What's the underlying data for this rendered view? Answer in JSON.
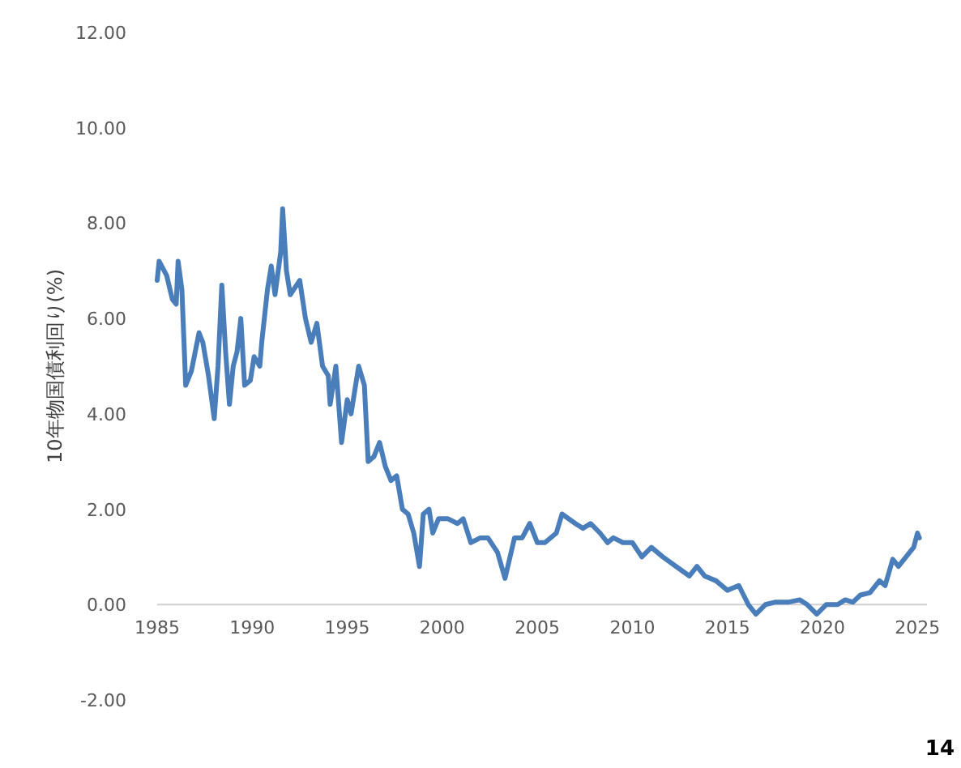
{
  "chart_data": {
    "type": "line",
    "ylabel": "10年物国債利回り(%)",
    "annotations": [
      "14"
    ],
    "xlim": [
      1985,
      2025.5
    ],
    "ylim": [
      -2,
      12
    ],
    "xticks": [
      1985,
      1990,
      1995,
      2000,
      2005,
      2010,
      2015,
      2020,
      2025
    ],
    "yticks": [
      {
        "value": -2,
        "label": "-2.00"
      },
      {
        "value": 0,
        "label": "0.00"
      },
      {
        "value": 2,
        "label": "2.00"
      },
      {
        "value": 4,
        "label": "4.00"
      },
      {
        "value": 6,
        "label": "6.00"
      },
      {
        "value": 8,
        "label": "8.00"
      },
      {
        "value": 10,
        "label": "10.00"
      },
      {
        "value": 12,
        "label": "12.00"
      }
    ],
    "series": [
      {
        "color": "#4a7ebb",
        "x": [
          1985.0,
          1985.1,
          1985.5,
          1985.8,
          1986.0,
          1986.1,
          1986.3,
          1986.5,
          1986.8,
          1987.0,
          1987.2,
          1987.4,
          1987.7,
          1988.0,
          1988.2,
          1988.4,
          1988.6,
          1988.8,
          1989.0,
          1989.2,
          1989.4,
          1989.6,
          1989.9,
          1990.1,
          1990.4,
          1990.5,
          1990.8,
          1991.0,
          1991.2,
          1991.5,
          1991.6,
          1991.8,
          1992.0,
          1992.5,
          1992.8,
          1993.1,
          1993.4,
          1993.7,
          1994.0,
          1994.1,
          1994.4,
          1994.7,
          1995.0,
          1995.2,
          1995.6,
          1995.9,
          1996.1,
          1996.4,
          1996.7,
          1997.0,
          1997.3,
          1997.6,
          1997.9,
          1998.2,
          1998.5,
          1998.8,
          1999.0,
          1999.3,
          1999.5,
          1999.8,
          2000.3,
          2000.8,
          2001.1,
          2001.5,
          2002.0,
          2002.4,
          2002.9,
          2003.3,
          2003.8,
          2004.2,
          2004.6,
          2005.0,
          2005.4,
          2006.0,
          2006.3,
          2007.0,
          2007.4,
          2007.8,
          2008.3,
          2008.7,
          2009.0,
          2009.5,
          2010.0,
          2010.5,
          2011.0,
          2011.6,
          2012.3,
          2013.0,
          2013.4,
          2013.8,
          2014.4,
          2015.0,
          2015.6,
          2016.1,
          2016.5,
          2017.0,
          2017.5,
          2018.2,
          2018.8,
          2019.2,
          2019.7,
          2020.2,
          2020.8,
          2021.2,
          2021.6,
          2022.0,
          2022.5,
          2023.0,
          2023.3,
          2023.7,
          2024.0,
          2024.5,
          2024.8,
          2025.0,
          2025.1
        ],
        "values": [
          6.8,
          7.2,
          6.9,
          6.4,
          6.3,
          7.2,
          6.6,
          4.6,
          4.9,
          5.3,
          5.7,
          5.5,
          4.8,
          3.9,
          5.0,
          6.7,
          5.3,
          4.2,
          5.0,
          5.3,
          6.0,
          4.6,
          4.7,
          5.2,
          5.0,
          5.5,
          6.6,
          7.1,
          6.5,
          7.4,
          8.3,
          7.0,
          6.5,
          6.8,
          6.0,
          5.5,
          5.9,
          5.0,
          4.8,
          4.2,
          5.0,
          3.4,
          4.3,
          4.0,
          5.0,
          4.6,
          3.0,
          3.1,
          3.4,
          2.9,
          2.6,
          2.7,
          2.0,
          1.9,
          1.5,
          0.8,
          1.9,
          2.0,
          1.5,
          1.8,
          1.8,
          1.7,
          1.8,
          1.3,
          1.4,
          1.4,
          1.1,
          0.55,
          1.4,
          1.4,
          1.7,
          1.3,
          1.3,
          1.5,
          1.9,
          1.7,
          1.6,
          1.7,
          1.5,
          1.3,
          1.4,
          1.3,
          1.3,
          1.0,
          1.2,
          1.0,
          0.8,
          0.6,
          0.8,
          0.6,
          0.5,
          0.3,
          0.4,
          0.0,
          -0.2,
          0.0,
          0.05,
          0.05,
          0.1,
          0.0,
          -0.2,
          0.0,
          0.0,
          0.1,
          0.05,
          0.2,
          0.25,
          0.5,
          0.4,
          0.95,
          0.8,
          1.05,
          1.2,
          1.5,
          1.4
        ]
      }
    ]
  }
}
